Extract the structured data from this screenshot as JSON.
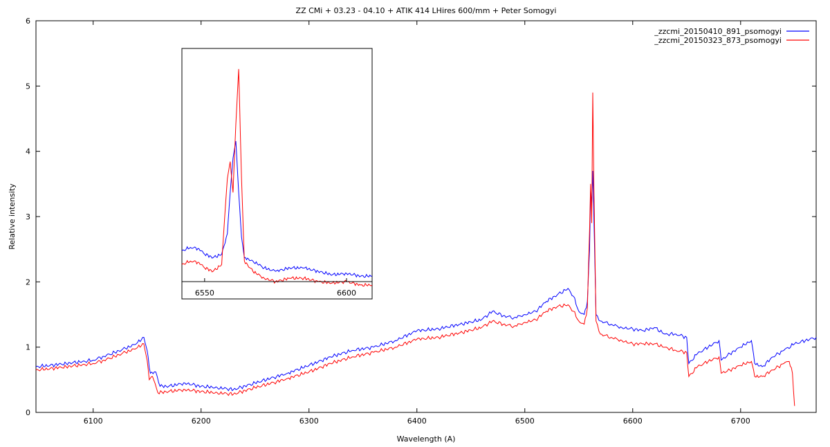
{
  "chart_data": {
    "type": "line",
    "title": "ZZ CMi + 03.23 - 04.10 + ATIK 414 LHires 600/mm + Peter Somogyi",
    "xlabel": "Wavelength (A)",
    "ylabel": "Relative intensity",
    "xlim": [
      6047,
      6770
    ],
    "ylim": [
      0,
      6
    ],
    "xticks": [
      6100,
      6200,
      6300,
      6400,
      6500,
      6600,
      6700
    ],
    "yticks": [
      0,
      1,
      2,
      3,
      4,
      5,
      6
    ],
    "grid": false,
    "legend_position": "top-right",
    "series": [
      {
        "name": "_zzcmi_20150410_891_psomogyi",
        "color": "#0000ff",
        "points": [
          [
            6047,
            0.7
          ],
          [
            6060,
            0.72
          ],
          [
            6075,
            0.75
          ],
          [
            6090,
            0.78
          ],
          [
            6100,
            0.8
          ],
          [
            6110,
            0.86
          ],
          [
            6120,
            0.92
          ],
          [
            6130,
            0.98
          ],
          [
            6140,
            1.05
          ],
          [
            6147,
            1.15
          ],
          [
            6150,
            0.95
          ],
          [
            6153,
            0.6
          ],
          [
            6158,
            0.62
          ],
          [
            6162,
            0.4
          ],
          [
            6170,
            0.4
          ],
          [
            6185,
            0.45
          ],
          [
            6200,
            0.4
          ],
          [
            6215,
            0.38
          ],
          [
            6230,
            0.35
          ],
          [
            6250,
            0.45
          ],
          [
            6270,
            0.55
          ],
          [
            6280,
            0.6
          ],
          [
            6300,
            0.72
          ],
          [
            6320,
            0.85
          ],
          [
            6340,
            0.95
          ],
          [
            6360,
            1.0
          ],
          [
            6380,
            1.1
          ],
          [
            6400,
            1.25
          ],
          [
            6420,
            1.28
          ],
          [
            6440,
            1.35
          ],
          [
            6460,
            1.42
          ],
          [
            6470,
            1.55
          ],
          [
            6480,
            1.48
          ],
          [
            6490,
            1.45
          ],
          [
            6500,
            1.5
          ],
          [
            6510,
            1.55
          ],
          [
            6520,
            1.7
          ],
          [
            6530,
            1.8
          ],
          [
            6540,
            1.9
          ],
          [
            6545,
            1.78
          ],
          [
            6550,
            1.55
          ],
          [
            6555,
            1.5
          ],
          [
            6558,
            1.7
          ],
          [
            6560,
            2.5
          ],
          [
            6561,
            3.4
          ],
          [
            6562,
            3.2
          ],
          [
            6563,
            3.7
          ],
          [
            6564,
            3.0
          ],
          [
            6566,
            1.5
          ],
          [
            6570,
            1.4
          ],
          [
            6580,
            1.35
          ],
          [
            6590,
            1.3
          ],
          [
            6600,
            1.28
          ],
          [
            6610,
            1.25
          ],
          [
            6620,
            1.3
          ],
          [
            6630,
            1.2
          ],
          [
            6640,
            1.2
          ],
          [
            6650,
            1.15
          ],
          [
            6652,
            0.75
          ],
          [
            6660,
            0.9
          ],
          [
            6670,
            1.0
          ],
          [
            6680,
            1.1
          ],
          [
            6682,
            0.8
          ],
          [
            6690,
            0.9
          ],
          [
            6700,
            1.0
          ],
          [
            6710,
            1.1
          ],
          [
            6713,
            0.75
          ],
          [
            6720,
            0.7
          ],
          [
            6730,
            0.85
          ],
          [
            6740,
            0.95
          ],
          [
            6750,
            1.05
          ],
          [
            6760,
            1.1
          ],
          [
            6770,
            1.15
          ]
        ]
      },
      {
        "name": "_zzcmi_20150323_873_psomogyi",
        "color": "#ff0000",
        "points": [
          [
            6047,
            0.65
          ],
          [
            6060,
            0.67
          ],
          [
            6075,
            0.7
          ],
          [
            6090,
            0.73
          ],
          [
            6100,
            0.75
          ],
          [
            6110,
            0.8
          ],
          [
            6120,
            0.86
          ],
          [
            6130,
            0.92
          ],
          [
            6140,
            0.98
          ],
          [
            6147,
            1.05
          ],
          [
            6150,
            0.8
          ],
          [
            6152,
            0.5
          ],
          [
            6155,
            0.55
          ],
          [
            6160,
            0.3
          ],
          [
            6170,
            0.32
          ],
          [
            6185,
            0.35
          ],
          [
            6200,
            0.32
          ],
          [
            6215,
            0.3
          ],
          [
            6230,
            0.28
          ],
          [
            6250,
            0.38
          ],
          [
            6270,
            0.47
          ],
          [
            6280,
            0.52
          ],
          [
            6300,
            0.62
          ],
          [
            6320,
            0.75
          ],
          [
            6340,
            0.85
          ],
          [
            6360,
            0.92
          ],
          [
            6380,
            1.0
          ],
          [
            6400,
            1.12
          ],
          [
            6420,
            1.15
          ],
          [
            6440,
            1.22
          ],
          [
            6460,
            1.3
          ],
          [
            6470,
            1.4
          ],
          [
            6480,
            1.35
          ],
          [
            6490,
            1.32
          ],
          [
            6500,
            1.38
          ],
          [
            6510,
            1.42
          ],
          [
            6520,
            1.55
          ],
          [
            6530,
            1.62
          ],
          [
            6540,
            1.65
          ],
          [
            6545,
            1.55
          ],
          [
            6550,
            1.4
          ],
          [
            6555,
            1.35
          ],
          [
            6558,
            1.6
          ],
          [
            6560,
            2.8
          ],
          [
            6561,
            3.5
          ],
          [
            6562,
            2.9
          ],
          [
            6563,
            4.9
          ],
          [
            6564,
            3.5
          ],
          [
            6566,
            1.4
          ],
          [
            6570,
            1.2
          ],
          [
            6580,
            1.15
          ],
          [
            6590,
            1.1
          ],
          [
            6600,
            1.05
          ],
          [
            6610,
            1.05
          ],
          [
            6620,
            1.05
          ],
          [
            6630,
            1.0
          ],
          [
            6640,
            0.95
          ],
          [
            6650,
            0.92
          ],
          [
            6652,
            0.55
          ],
          [
            6660,
            0.7
          ],
          [
            6670,
            0.78
          ],
          [
            6680,
            0.85
          ],
          [
            6682,
            0.6
          ],
          [
            6690,
            0.65
          ],
          [
            6700,
            0.72
          ],
          [
            6710,
            0.78
          ],
          [
            6713,
            0.55
          ],
          [
            6720,
            0.55
          ],
          [
            6730,
            0.65
          ],
          [
            6740,
            0.75
          ],
          [
            6745,
            0.78
          ],
          [
            6748,
            0.6
          ],
          [
            6750,
            0.1
          ]
        ]
      }
    ],
    "inset": {
      "xlim": [
        6542,
        6609
      ],
      "ylim": [
        2.3,
        5.6
      ],
      "xticks": [
        6550,
        6600
      ],
      "series": [
        {
          "name": "_zzcmi_20150410_891_psomogyi",
          "color": "#0000ff",
          "points": [
            [
              6542,
              2.75
            ],
            [
              6545,
              2.8
            ],
            [
              6548,
              2.78
            ],
            [
              6550,
              2.7
            ],
            [
              6553,
              2.65
            ],
            [
              6556,
              2.7
            ],
            [
              6558,
              3.0
            ],
            [
              6559,
              3.6
            ],
            [
              6560,
              4.1
            ],
            [
              6561,
              4.35
            ],
            [
              6562,
              3.6
            ],
            [
              6563,
              2.95
            ],
            [
              6564,
              2.65
            ],
            [
              6567,
              2.6
            ],
            [
              6571,
              2.5
            ],
            [
              6575,
              2.45
            ],
            [
              6580,
              2.5
            ],
            [
              6585,
              2.5
            ],
            [
              6590,
              2.45
            ],
            [
              6595,
              2.4
            ],
            [
              6600,
              2.42
            ],
            [
              6605,
              2.38
            ],
            [
              6609,
              2.38
            ]
          ]
        },
        {
          "name": "_zzcmi_20150323_873_psomogyi",
          "color": "#ff0000",
          "points": [
            [
              6542,
              2.55
            ],
            [
              6545,
              2.6
            ],
            [
              6548,
              2.58
            ],
            [
              6550,
              2.5
            ],
            [
              6553,
              2.45
            ],
            [
              6556,
              2.55
            ],
            [
              6557,
              3.2
            ],
            [
              6558,
              3.8
            ],
            [
              6559,
              4.05
            ],
            [
              6560,
              3.6
            ],
            [
              6561,
              4.6
            ],
            [
              6562,
              5.4
            ],
            [
              6563,
              3.8
            ],
            [
              6564,
              2.6
            ],
            [
              6567,
              2.45
            ],
            [
              6571,
              2.35
            ],
            [
              6575,
              2.3
            ],
            [
              6580,
              2.35
            ],
            [
              6585,
              2.35
            ],
            [
              6590,
              2.3
            ],
            [
              6595,
              2.28
            ],
            [
              6600,
              2.3
            ],
            [
              6605,
              2.25
            ],
            [
              6609,
              2.25
            ]
          ]
        }
      ]
    }
  }
}
